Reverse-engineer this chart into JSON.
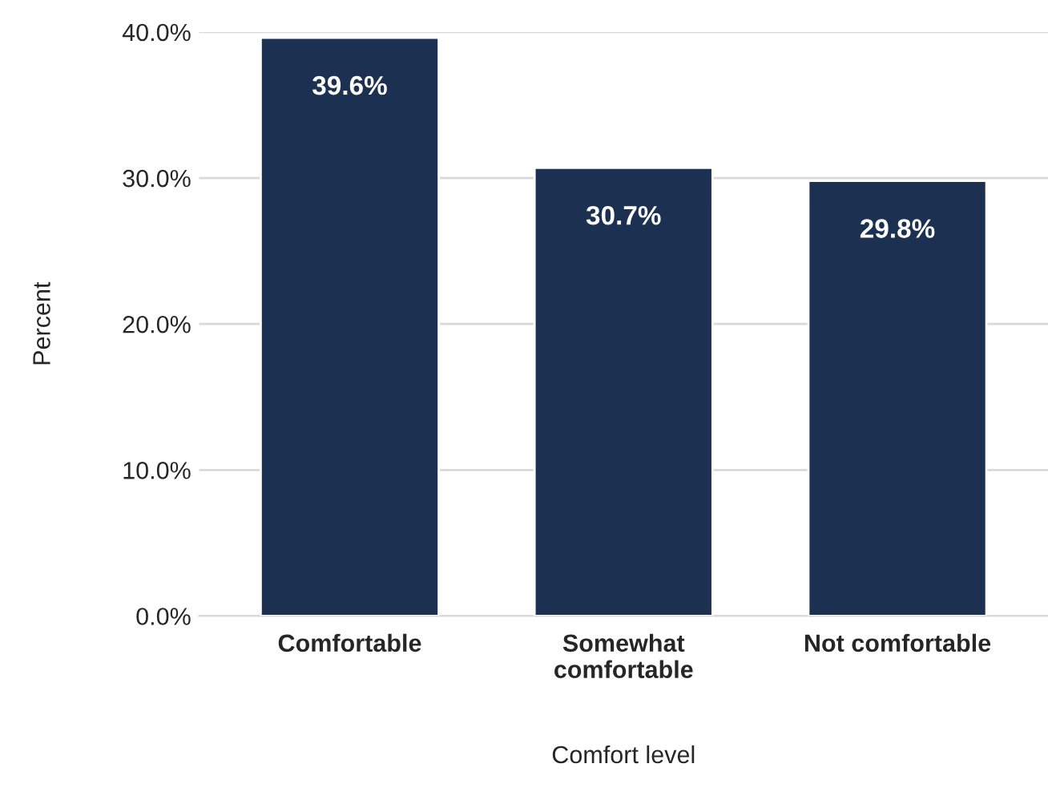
{
  "chart_data": {
    "type": "bar",
    "xlabel": "Comfort level",
    "ylabel": "Percent",
    "categories": [
      "Comfortable",
      "Somewhat\ncomfortable",
      "Not comfortable"
    ],
    "values": [
      39.6,
      30.7,
      29.8
    ],
    "color": "#1c3152",
    "value_labels": [
      "39.6%",
      "30.7%",
      "29.8%"
    ],
    "ylim": [
      0,
      40
    ],
    "yticks": [
      {
        "value": 0,
        "label": "0.0%"
      },
      {
        "value": 10,
        "label": "10.0%"
      },
      {
        "value": 20,
        "label": "20.0%"
      },
      {
        "value": 30,
        "label": "30.0%"
      },
      {
        "value": 40,
        "label": "40.0%"
      }
    ],
    "grid": "y",
    "legend": false
  }
}
